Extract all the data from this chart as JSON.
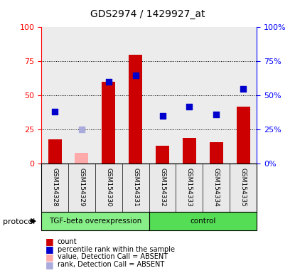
{
  "title": "GDS2974 / 1429927_at",
  "samples": [
    "GSM154328",
    "GSM154329",
    "GSM154330",
    "GSM154331",
    "GSM154332",
    "GSM154333",
    "GSM154334",
    "GSM154335"
  ],
  "bar_values": [
    18,
    8,
    60,
    80,
    13,
    19,
    16,
    42
  ],
  "bar_absent": [
    false,
    true,
    false,
    false,
    false,
    false,
    false,
    false
  ],
  "scatter_values": [
    38,
    25,
    60,
    65,
    35,
    42,
    36,
    55
  ],
  "scatter_absent": [
    false,
    true,
    false,
    false,
    false,
    false,
    false,
    false
  ],
  "bar_color_present": "#cc0000",
  "bar_color_absent": "#ffaaaa",
  "scatter_color_present": "#0000cc",
  "scatter_color_absent": "#aaaadd",
  "ylim": [
    0,
    100
  ],
  "yticks": [
    0,
    25,
    50,
    75,
    100
  ],
  "groups": [
    {
      "label": "TGF-beta overexpression",
      "start": 0,
      "end": 4,
      "color": "#88ee88"
    },
    {
      "label": "control",
      "start": 4,
      "end": 8,
      "color": "#55dd55"
    }
  ],
  "group_row_label": "protocol",
  "bg_color": "#e0e0e0",
  "legend_items": [
    {
      "label": "count",
      "color": "#cc0000"
    },
    {
      "label": "percentile rank within the sample",
      "color": "#0000cc"
    },
    {
      "label": "value, Detection Call = ABSENT",
      "color": "#ffaaaa"
    },
    {
      "label": "rank, Detection Call = ABSENT",
      "color": "#aaaadd"
    }
  ]
}
